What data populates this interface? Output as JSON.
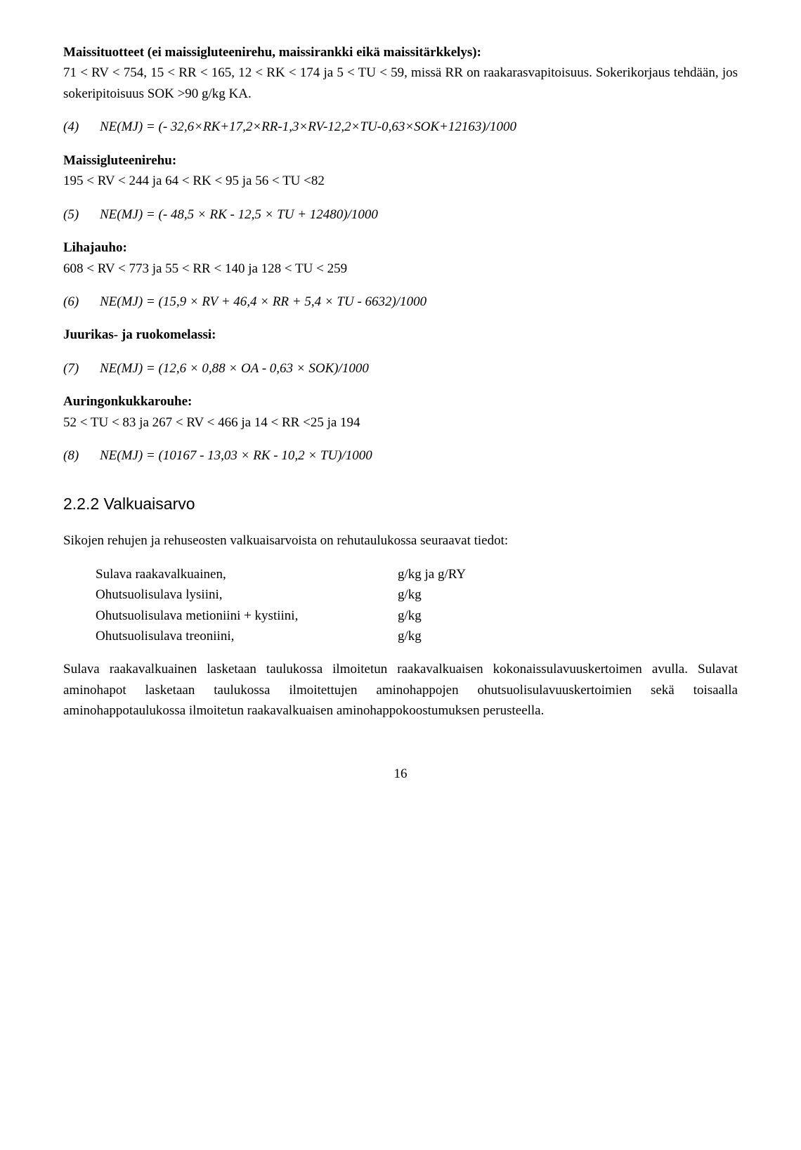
{
  "maize": {
    "heading": "Maissituotteet (ei maissigluteenirehu, maissirankki eikä maissitärkkelys):",
    "conditions": "71 < RV < 754, 15 < RR < 165, 12 < RK < 174 ja 5 < TU < 59, missä RR on raakarasvapitoisuus. Sokerikorjaus tehdään, jos sokeripitoisuus SOK >90 g/kg KA."
  },
  "eq4": {
    "num": "(4)",
    "body": "NE(MJ) = (- 32,6×RK+17,2×RR-1,3×RV-12,2×TU-0,63×SOK+12163)/1000"
  },
  "gluten": {
    "heading": "Maissigluteenirehu:",
    "conditions": "195 < RV < 244 ja 64 < RK < 95 ja 56 < TU <82"
  },
  "eq5": {
    "num": "(5)",
    "body": "NE(MJ) = (- 48,5 × RK - 12,5 × TU + 12480)/1000"
  },
  "meat": {
    "heading": "Lihajauho:",
    "conditions": "608 < RV < 773 ja 55 < RR < 140 ja 128 < TU < 259"
  },
  "eq6": {
    "num": "(6)",
    "body": "NE(MJ) = (15,9 × RV + 46,4 × RR + 5,4 × TU - 6632)/1000"
  },
  "beet": {
    "heading": "Juurikas- ja ruokomelassi:"
  },
  "eq7": {
    "num": "(7)",
    "body": "NE(MJ) = (12,6 × 0,88 × OA - 0,63 × SOK)/1000"
  },
  "sunflower": {
    "heading": "Auringonkukkarouhe:",
    "conditions": "52 < TU < 83 ja 267 < RV < 466 ja 14 < RR <25 ja 194"
  },
  "eq8": {
    "num": "(8)",
    "body": "NE(MJ) = (10167 - 13,03 × RK - 10,2 × TU)/1000"
  },
  "section222": {
    "title": "2.2.2 Valkuaisarvo",
    "intro": "Sikojen rehujen ja rehuseosten valkuaisarvoista on rehutaulukossa seuraavat tiedot:",
    "rows": [
      {
        "label": "Sulava raakavalkuainen,",
        "val": "g/kg ja g/RY"
      },
      {
        "label": "Ohutsuolisulava lysiini,",
        "val": "g/kg"
      },
      {
        "label": "Ohutsuolisulava metioniini + kystiini,",
        "val": "g/kg"
      },
      {
        "label": "Ohutsuolisulava treoniini,",
        "val": "g/kg"
      }
    ],
    "para": "Sulava raakavalkuainen lasketaan taulukossa ilmoitetun raakavalkuaisen kokonaissulavuuskertoimen avulla. Sulavat aminohapot lasketaan taulukossa ilmoitettujen aminohappojen ohutsuolisulavuuskertoimien sekä toisaalla aminohappotaulukossa ilmoitetun raakavalkuaisen aminohappokoostumuksen perusteella."
  },
  "pageNumber": "16"
}
